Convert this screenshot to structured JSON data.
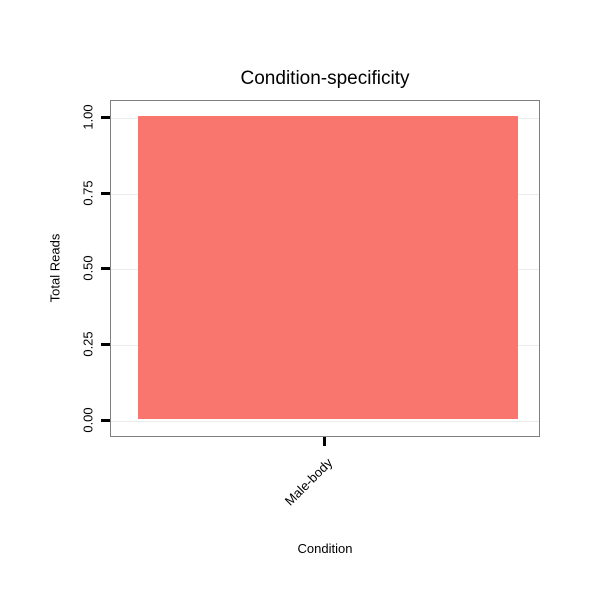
{
  "chart_data": {
    "type": "bar",
    "title": "Condition-specificity",
    "xlabel": "Condition",
    "ylabel": "Total Reads",
    "categories": [
      "Male-body"
    ],
    "values": [
      1.0
    ],
    "series": [
      {
        "name": "Total Reads",
        "values": [
          1.0
        ]
      }
    ],
    "yticks": [
      "0.00",
      "0.25",
      "0.50",
      "0.75",
      "1.00"
    ],
    "ytick_values": [
      0.0,
      0.25,
      0.5,
      0.75,
      1.0
    ],
    "ylim": [
      0,
      1
    ],
    "grid": "major-horizontal",
    "legend": "none",
    "bar_color": "#F8766D",
    "panel_border_color": "#7f7f7f",
    "gridline_color": "#ebebeb",
    "background_color": "#ffffff",
    "text_color": "#000000"
  }
}
